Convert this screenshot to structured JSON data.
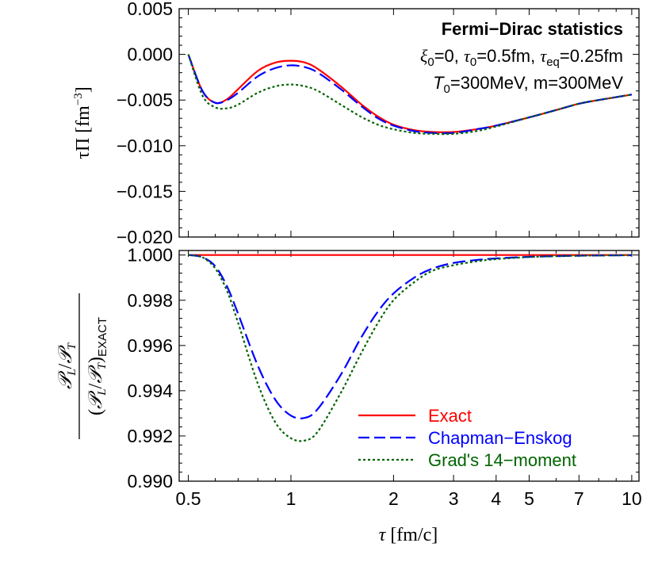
{
  "chart_data": [
    {
      "type": "line",
      "panel": "top",
      "annotations": {
        "title": "Fermi−Dirac statistics",
        "line1_xi": "ξ",
        "line1_xi_sub": "0",
        "line1_xi_val": "=0, ",
        "line1_tau": "τ",
        "line1_tau_sub": "0",
        "line1_tau_val": "=0.5fm, ",
        "line1_taueq": "τ",
        "line1_taueq_sub": "eq",
        "line1_taueq_val": "=0.25fm",
        "line2_T": "T",
        "line2_T_sub": "0",
        "line2_T_val": "=300MeV, m=300MeV"
      },
      "ylabel_main": "τΠ [fm",
      "ylabel_sup": "−3",
      "ylabel_close": "]",
      "xscale": "log",
      "xlim": [
        0.47,
        10.5
      ],
      "ylim": [
        -0.02,
        0.005
      ],
      "yticks": [
        0.005,
        0.0,
        -0.005,
        -0.01,
        -0.015,
        -0.02
      ],
      "ytick_labels": [
        "0.005",
        "0.000",
        "−0.005",
        "−0.010",
        "−0.015",
        "−0.020"
      ],
      "x": [
        0.5,
        0.55,
        0.6,
        0.65,
        0.7,
        0.8,
        0.9,
        1.0,
        1.1,
        1.2,
        1.4,
        1.6,
        1.8,
        2.0,
        2.3,
        2.6,
        3.0,
        3.5,
        4.0,
        5.0,
        6.0,
        7.0,
        8.0,
        10.0
      ],
      "series": [
        {
          "name": "Exact",
          "color": "#ff0000",
          "dash": "solid",
          "values": [
            0.0,
            -0.004,
            -0.0053,
            -0.0049,
            -0.0038,
            -0.0018,
            -0.0009,
            -0.0007,
            -0.0009,
            -0.0016,
            -0.0035,
            -0.0054,
            -0.0068,
            -0.0077,
            -0.0083,
            -0.0085,
            -0.0085,
            -0.0082,
            -0.0078,
            -0.0069,
            -0.0061,
            -0.0054,
            -0.005,
            -0.0044
          ]
        },
        {
          "name": "Chapman−Enskog",
          "color": "#0000ff",
          "dash": "long",
          "values": [
            0.0,
            -0.004,
            -0.0053,
            -0.005,
            -0.0042,
            -0.0024,
            -0.0015,
            -0.0012,
            -0.0014,
            -0.002,
            -0.0038,
            -0.0056,
            -0.007,
            -0.0078,
            -0.0084,
            -0.0086,
            -0.0086,
            -0.0082,
            -0.0078,
            -0.0069,
            -0.0061,
            -0.0054,
            -0.005,
            -0.0044
          ]
        },
        {
          "name": "Grad's 14−moment",
          "color": "#006400",
          "dash": "dotted",
          "values": [
            0.0,
            -0.0045,
            -0.0058,
            -0.0059,
            -0.0055,
            -0.0042,
            -0.0035,
            -0.0033,
            -0.0035,
            -0.004,
            -0.0055,
            -0.0068,
            -0.0077,
            -0.0082,
            -0.0086,
            -0.0087,
            -0.0087,
            -0.0084,
            -0.0079,
            -0.0069,
            -0.0061,
            -0.0054,
            -0.005,
            -0.0044
          ]
        }
      ]
    },
    {
      "type": "line",
      "panel": "bottom",
      "ylabel_num": "𝒫L/𝒫T",
      "ylabel_den": "(𝒫L/𝒫T)EXACT",
      "ylabel_num_parts": {
        "a": "𝒫",
        "a_sub": "L",
        "slash": "/",
        "b": "𝒫",
        "b_sub": "T"
      },
      "ylabel_den_parts": {
        "open": "(",
        "a": "𝒫",
        "a_sub": "L",
        "slash": "/",
        "b": "𝒫",
        "b_sub": "T",
        "close": ")",
        "sub": "EXACT"
      },
      "xlabel_tau": "τ",
      "xlabel_rest": " [fm/c]",
      "xscale": "log",
      "xlim": [
        0.47,
        10.5
      ],
      "ylim": [
        0.99,
        1.0002
      ],
      "yticks": [
        1.0,
        0.998,
        0.996,
        0.994,
        0.992,
        0.99
      ],
      "ytick_labels": [
        "1.000",
        "0.998",
        "0.996",
        "0.994",
        "0.992",
        "0.990"
      ],
      "xticks": [
        0.5,
        1,
        2,
        3,
        4,
        5,
        7,
        10
      ],
      "xtick_labels": [
        "0.5",
        "1",
        "2",
        "3",
        "4",
        "5",
        "7",
        "10"
      ],
      "x": [
        0.5,
        0.55,
        0.6,
        0.65,
        0.7,
        0.8,
        0.9,
        1.0,
        1.1,
        1.2,
        1.4,
        1.6,
        1.8,
        2.0,
        2.3,
        2.6,
        3.0,
        3.5,
        4.0,
        5.0,
        6.0,
        7.0,
        8.0,
        10.0
      ],
      "series": [
        {
          "name": "Exact",
          "color": "#ff0000",
          "dash": "solid",
          "values": [
            1.0,
            1.0,
            1.0,
            1.0,
            1.0,
            1.0,
            1.0,
            1.0,
            1.0,
            1.0,
            1.0,
            1.0,
            1.0,
            1.0,
            1.0,
            1.0,
            1.0,
            1.0,
            1.0,
            1.0,
            1.0,
            1.0,
            1.0,
            1.0
          ]
        },
        {
          "name": "Chapman−Enskog",
          "color": "#0000ff",
          "dash": "long",
          "values": [
            1.0,
            0.9999,
            0.9995,
            0.9986,
            0.9974,
            0.9951,
            0.9936,
            0.9929,
            0.9928,
            0.9932,
            0.9947,
            0.9963,
            0.9975,
            0.9983,
            0.999,
            0.9994,
            0.99965,
            0.99978,
            0.99985,
            0.99992,
            0.99995,
            0.99997,
            0.99998,
            0.99999
          ]
        },
        {
          "name": "Grad's 14−moment",
          "color": "#006400",
          "dash": "dotted",
          "values": [
            1.0,
            0.9999,
            0.9994,
            0.9984,
            0.997,
            0.9943,
            0.9926,
            0.9919,
            0.9918,
            0.9922,
            0.9939,
            0.9956,
            0.997,
            0.998,
            0.9988,
            0.9993,
            0.99955,
            0.99972,
            0.99982,
            0.99991,
            0.99995,
            0.99997,
            0.99998,
            0.99999
          ]
        }
      ],
      "legend": {
        "position": "bottom-right",
        "entries": [
          "Exact",
          "Chapman−Enskog",
          "Grad's 14−moment"
        ]
      }
    }
  ]
}
